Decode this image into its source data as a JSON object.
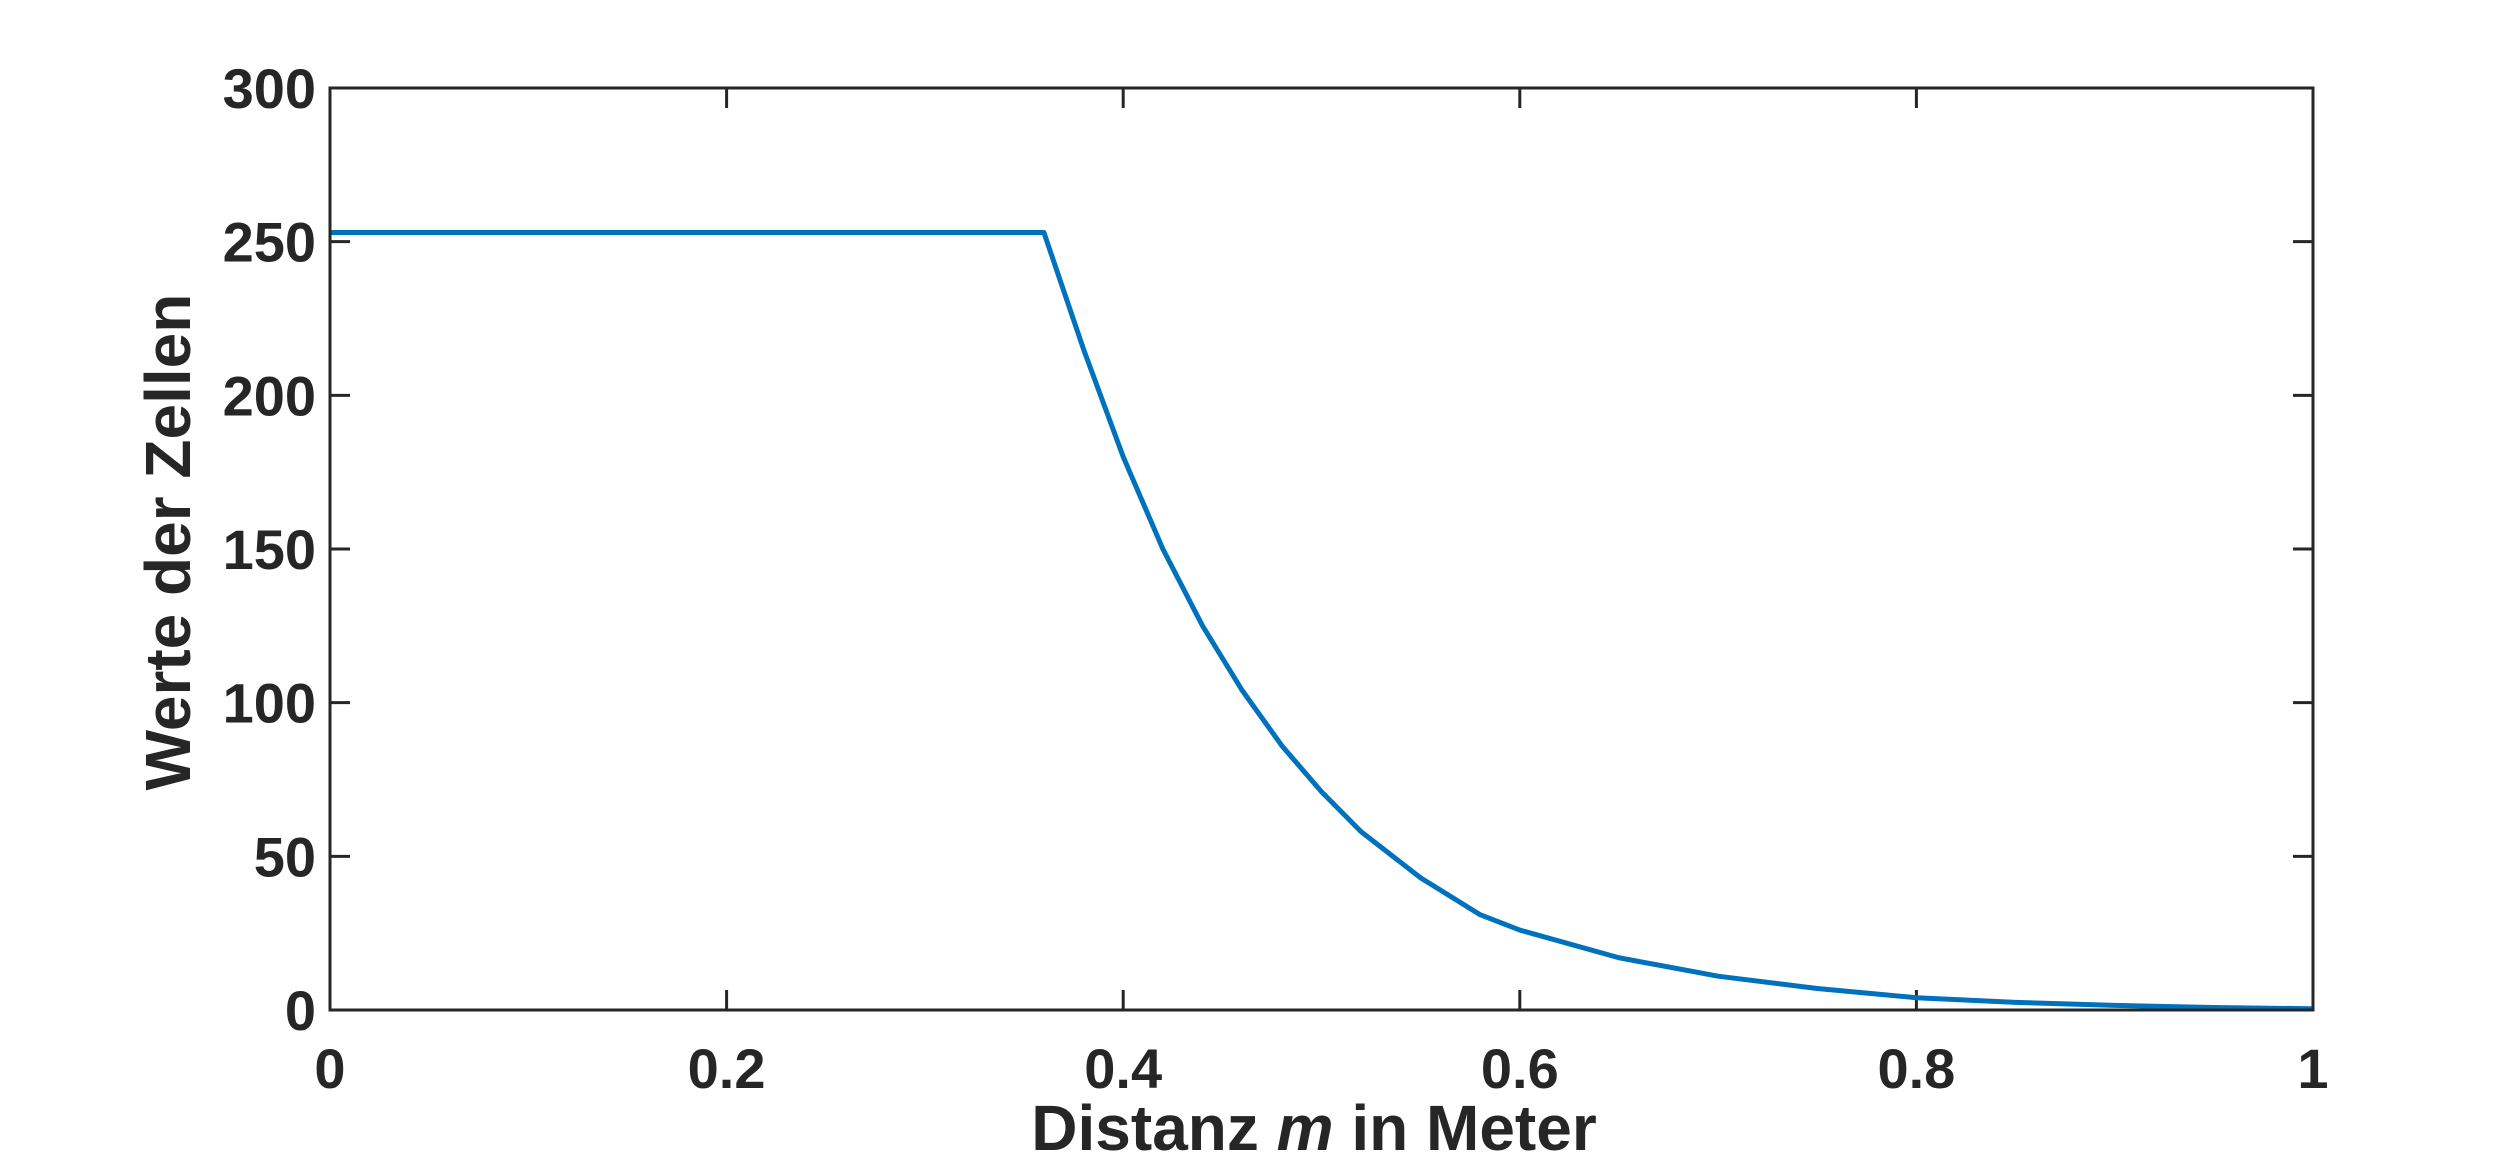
{
  "chart_data": {
    "type": "line",
    "title": "",
    "xlabel_parts": [
      "Distanz ",
      "m",
      " in Meter"
    ],
    "ylabel": "Werte der Zellen",
    "xlim": [
      0,
      1
    ],
    "ylim": [
      0,
      300
    ],
    "x_ticks": [
      0,
      0.2,
      0.4,
      0.6,
      0.8,
      1
    ],
    "x_tick_labels": [
      "0",
      "0.2",
      "0.4",
      "0.6",
      "0.8",
      "1"
    ],
    "y_ticks": [
      0,
      50,
      100,
      150,
      200,
      250,
      300
    ],
    "y_tick_labels": [
      "0",
      "50",
      "100",
      "150",
      "200",
      "250",
      "300"
    ],
    "grid": false,
    "line_color": "#0072BD",
    "axis_color": "#262626",
    "series": [
      {
        "x": [
          0,
          0.36,
          0.38,
          0.4,
          0.42,
          0.44,
          0.46,
          0.48,
          0.5,
          0.52,
          0.55,
          0.58,
          0.6,
          0.65,
          0.7,
          0.75,
          0.8,
          0.85,
          0.9,
          0.95,
          1.0
        ],
        "values": [
          253,
          253,
          215,
          180,
          150,
          125,
          104,
          86,
          71,
          58,
          43,
          31,
          26,
          17,
          11,
          7,
          4,
          2.5,
          1.5,
          0.8,
          0.4
        ]
      }
    ]
  }
}
